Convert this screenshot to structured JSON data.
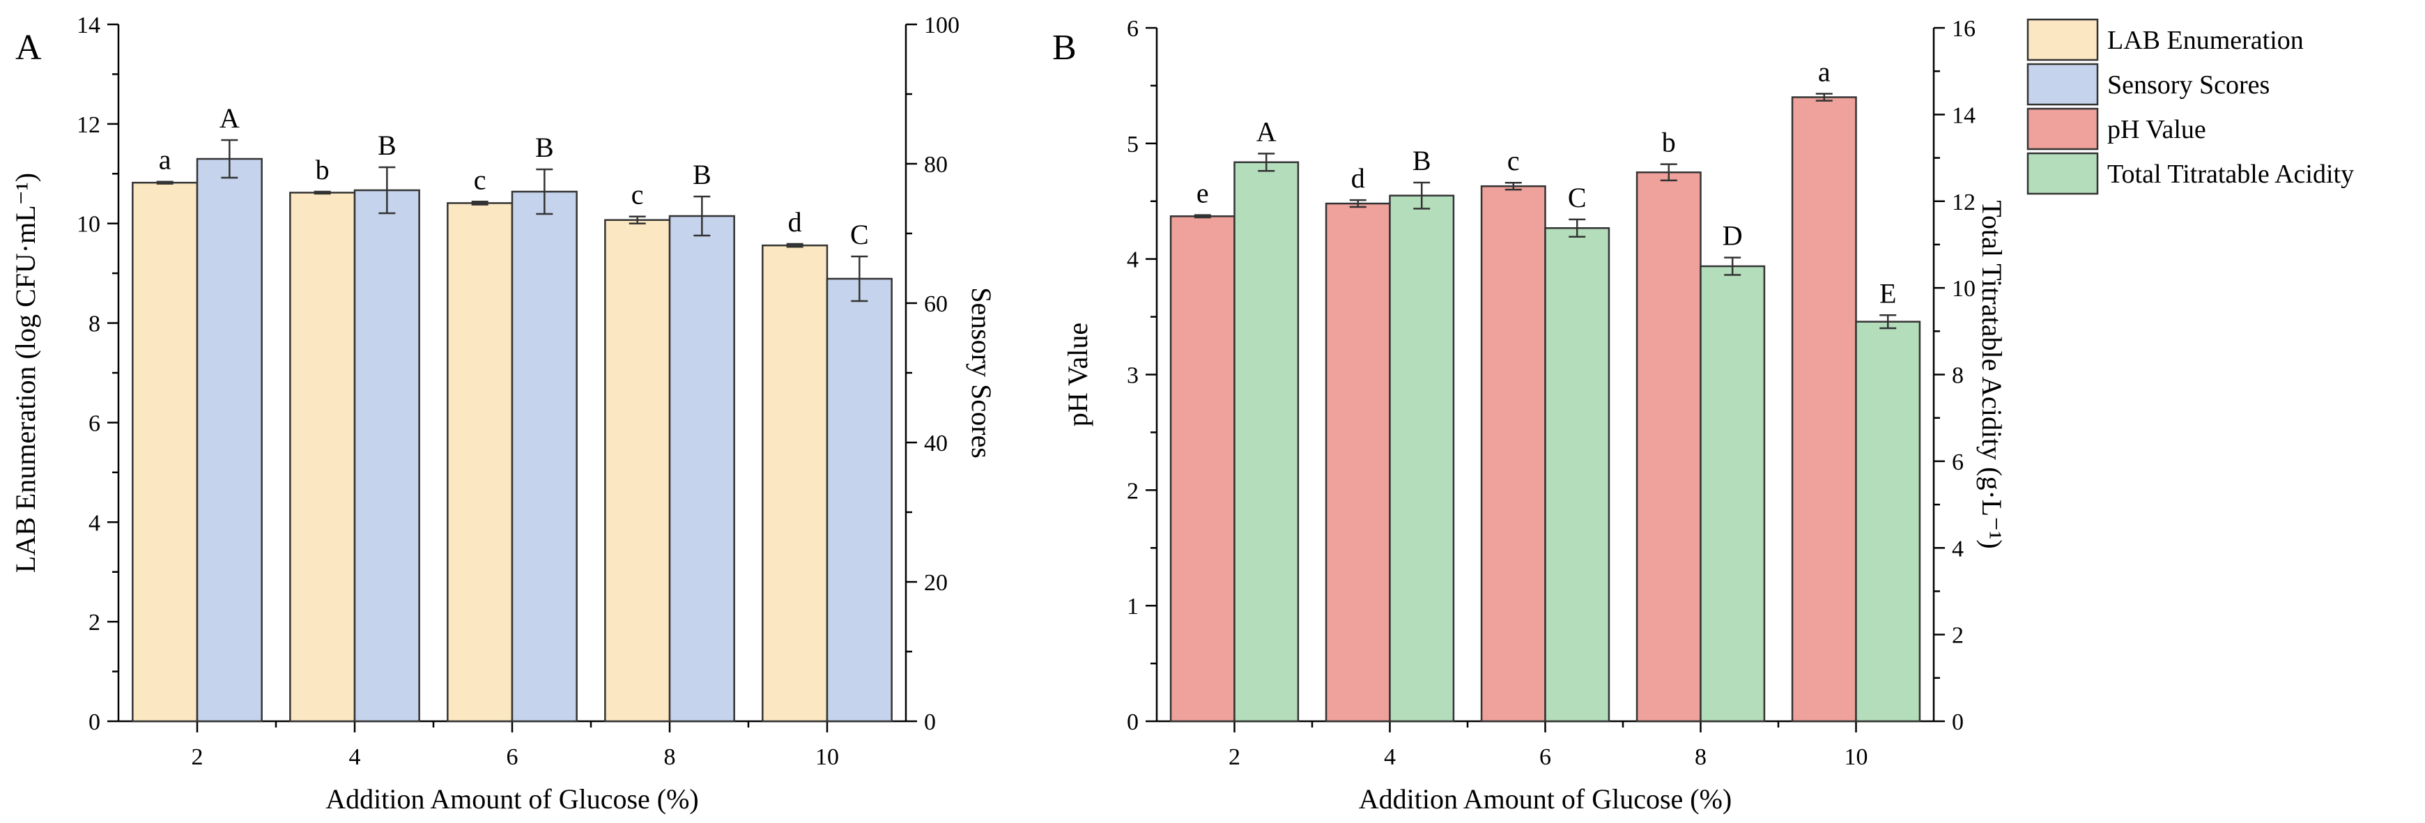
{
  "colors": {
    "lab": "#fbe8c2",
    "sensory": "#c5d3ec",
    "ph": "#efa19b",
    "tta": "#b3ddbb"
  },
  "legend": {
    "items": [
      {
        "label": "LAB Enumeration",
        "color_key": "lab"
      },
      {
        "label": "Sensory Scores",
        "color_key": "sensory"
      },
      {
        "label": "pH Value",
        "color_key": "ph"
      },
      {
        "label": "Total Titratable Acidity",
        "color_key": "tta"
      }
    ]
  },
  "chart_data": [
    {
      "panel_label": "A",
      "type": "bar",
      "xlabel": "Addition Amount of Glucose (%)",
      "ylabel": "LAB Enumeration (log CFU·mL⁻¹)",
      "y2label": "Sensory Scores",
      "ylim": [
        0,
        14
      ],
      "y2lim": [
        0,
        100
      ],
      "yticks": [
        0,
        2,
        4,
        6,
        8,
        10,
        12,
        14
      ],
      "y2ticks": [
        0,
        20,
        40,
        60,
        80,
        100
      ],
      "categories": [
        "2",
        "4",
        "6",
        "8",
        "10"
      ],
      "series": [
        {
          "name": "LAB Enumeration",
          "color_key": "lab",
          "axis": "left",
          "values": [
            10.82,
            10.62,
            10.41,
            10.07,
            9.56
          ],
          "errors": [
            0.02,
            0.02,
            0.03,
            0.07,
            0.03
          ],
          "letters": [
            "a",
            "b",
            "c",
            "c",
            "d"
          ]
        },
        {
          "name": "Sensory Scores",
          "color_key": "sensory",
          "axis": "right",
          "values": [
            80.7,
            76.2,
            76.0,
            72.5,
            63.5
          ],
          "errors": [
            2.7,
            3.3,
            3.2,
            2.8,
            3.2
          ],
          "letters": [
            "A",
            "B",
            "B",
            "B",
            "C"
          ]
        }
      ]
    },
    {
      "panel_label": "B",
      "type": "bar",
      "xlabel": "Addition Amount of Glucose (%)",
      "ylabel": "pH Value",
      "y2label": "Total Titratable Acidity (g·L⁻¹)",
      "ylim": [
        0,
        6
      ],
      "y2lim": [
        0,
        16
      ],
      "yticks": [
        0,
        1,
        2,
        3,
        4,
        5,
        6
      ],
      "y2ticks": [
        0,
        2,
        4,
        6,
        8,
        10,
        12,
        14,
        16
      ],
      "categories": [
        "2",
        "4",
        "6",
        "8",
        "10"
      ],
      "series": [
        {
          "name": "pH Value",
          "color_key": "ph",
          "axis": "left",
          "values": [
            4.37,
            4.48,
            4.63,
            4.75,
            5.4
          ],
          "errors": [
            0.01,
            0.03,
            0.03,
            0.07,
            0.03
          ],
          "letters": [
            "e",
            "d",
            "c",
            "b",
            "a"
          ]
        },
        {
          "name": "Total Titratable Acidity",
          "color_key": "tta",
          "axis": "right",
          "values": [
            12.9,
            12.13,
            11.38,
            10.5,
            9.22
          ],
          "errors": [
            0.2,
            0.3,
            0.2,
            0.2,
            0.15
          ],
          "letters": [
            "A",
            "B",
            "C",
            "D",
            "E"
          ]
        }
      ]
    }
  ]
}
